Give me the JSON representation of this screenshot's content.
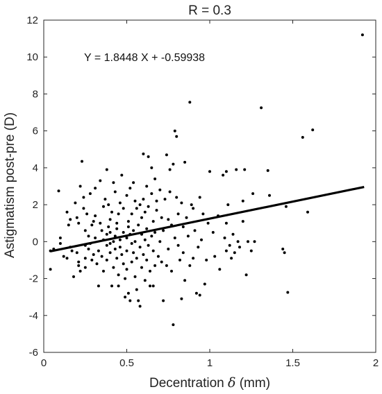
{
  "chart_data": {
    "type": "scatter",
    "title": "R = 0.3",
    "xlabel_prefix": "Decentration ",
    "xlabel_symbol": "δ",
    "xlabel_suffix": " (mm)",
    "ylabel": "Astigmatism post-pre (D)",
    "annotation": "Y = 1.8448 X + -0.59938",
    "xlim": [
      0,
      2
    ],
    "ylim": [
      -6,
      12
    ],
    "xticks": [
      "0",
      "0.5",
      "1",
      "1.5",
      "2"
    ],
    "yticks": [
      "-6",
      "-4",
      "-2",
      "0",
      "2",
      "4",
      "6",
      "8",
      "10",
      "12"
    ],
    "grid": false,
    "fit_line": {
      "slope": 1.8448,
      "intercept": -0.59938,
      "x_range": [
        0.04,
        1.93
      ]
    },
    "colors": {
      "points": "#000000",
      "line": "#000000",
      "axes": "#262626"
    },
    "points": [
      [
        0.04,
        -0.5
      ],
      [
        0.04,
        -1.5
      ],
      [
        0.06,
        -0.4
      ],
      [
        0.09,
        2.75
      ],
      [
        0.1,
        0.2
      ],
      [
        0.1,
        -0.1
      ],
      [
        0.12,
        -0.8
      ],
      [
        0.14,
        1.6
      ],
      [
        0.14,
        -0.9
      ],
      [
        0.15,
        0.9
      ],
      [
        0.16,
        1.2
      ],
      [
        0.16,
        -0.3
      ],
      [
        0.17,
        -0.5
      ],
      [
        0.18,
        -1.9
      ],
      [
        0.19,
        2.1
      ],
      [
        0.2,
        1.3
      ],
      [
        0.2,
        -0.6
      ],
      [
        0.21,
        1.0
      ],
      [
        0.21,
        -1.1
      ],
      [
        0.21,
        -1.3
      ],
      [
        0.22,
        -1.6
      ],
      [
        0.22,
        3.0
      ],
      [
        0.23,
        4.35
      ],
      [
        0.24,
        1.8
      ],
      [
        0.24,
        2.4
      ],
      [
        0.25,
        0.6
      ],
      [
        0.25,
        -0.2
      ],
      [
        0.25,
        -0.9
      ],
      [
        0.25,
        -1.4
      ],
      [
        0.26,
        1.5
      ],
      [
        0.27,
        0.3
      ],
      [
        0.27,
        -0.4
      ],
      [
        0.28,
        2.6
      ],
      [
        0.28,
        -0.1
      ],
      [
        0.29,
        0.9
      ],
      [
        0.29,
        -1.0
      ],
      [
        0.3,
        1.1
      ],
      [
        0.3,
        -0.7
      ],
      [
        0.31,
        2.9
      ],
      [
        0.31,
        1.4
      ],
      [
        0.31,
        0.2
      ],
      [
        0.32,
        -1.2
      ],
      [
        0.33,
        -0.5
      ],
      [
        0.33,
        -2.4
      ],
      [
        0.34,
        1.0
      ],
      [
        0.34,
        3.3
      ],
      [
        0.35,
        0.6
      ],
      [
        0.35,
        -0.8
      ],
      [
        0.36,
        0.1
      ],
      [
        0.36,
        1.9
      ],
      [
        0.36,
        -1.6
      ],
      [
        0.37,
        2.3
      ],
      [
        0.38,
        0.4
      ],
      [
        0.38,
        -0.2
      ],
      [
        0.38,
        -1.0
      ],
      [
        0.38,
        3.9
      ],
      [
        0.39,
        0.8
      ],
      [
        0.39,
        2.0
      ],
      [
        0.4,
        -0.1
      ],
      [
        0.4,
        1.2
      ],
      [
        0.4,
        -0.6
      ],
      [
        0.4,
        0.5
      ],
      [
        0.41,
        -2.4
      ],
      [
        0.41,
        1.6
      ],
      [
        0.42,
        0.0
      ],
      [
        0.42,
        -1.4
      ],
      [
        0.42,
        3.2
      ],
      [
        0.43,
        0.3
      ],
      [
        0.43,
        -0.4
      ],
      [
        0.43,
        2.7
      ],
      [
        0.44,
        1.0
      ],
      [
        0.44,
        -0.9
      ],
      [
        0.44,
        0.7
      ],
      [
        0.45,
        -1.8
      ],
      [
        0.45,
        -2.4
      ],
      [
        0.45,
        1.5
      ],
      [
        0.46,
        0.1
      ],
      [
        0.46,
        -0.3
      ],
      [
        0.46,
        2.1
      ],
      [
        0.47,
        3.6
      ],
      [
        0.47,
        -0.7
      ],
      [
        0.48,
        0.5
      ],
      [
        0.48,
        1.8
      ],
      [
        0.48,
        -1.2
      ],
      [
        0.49,
        -2.0
      ],
      [
        0.49,
        -3.0
      ],
      [
        0.5,
        0.2
      ],
      [
        0.5,
        2.5
      ],
      [
        0.5,
        -0.5
      ],
      [
        0.5,
        -1.5
      ],
      [
        0.51,
        0.8
      ],
      [
        0.51,
        1.1
      ],
      [
        0.51,
        -2.8
      ],
      [
        0.52,
        0.4
      ],
      [
        0.52,
        -3.2
      ],
      [
        0.52,
        2.9
      ],
      [
        0.53,
        -0.1
      ],
      [
        0.53,
        1.5
      ],
      [
        0.53,
        -1.1
      ],
      [
        0.54,
        0.6
      ],
      [
        0.54,
        3.2
      ],
      [
        0.54,
        -0.6
      ],
      [
        0.55,
        -1.9
      ],
      [
        0.55,
        2.2
      ],
      [
        0.55,
        0.0
      ],
      [
        0.56,
        1.8
      ],
      [
        0.56,
        -0.9
      ],
      [
        0.56,
        -2.6
      ],
      [
        0.57,
        -3.2
      ],
      [
        0.57,
        0.9
      ],
      [
        0.58,
        -3.5
      ],
      [
        0.58,
        2.0
      ],
      [
        0.58,
        -0.3
      ],
      [
        0.59,
        1.3
      ],
      [
        0.59,
        -1.4
      ],
      [
        0.59,
        0.4
      ],
      [
        0.6,
        2.3
      ],
      [
        0.6,
        4.75
      ],
      [
        0.6,
        -0.7
      ],
      [
        0.61,
        0.1
      ],
      [
        0.61,
        1.6
      ],
      [
        0.61,
        -2.1
      ],
      [
        0.62,
        3.0
      ],
      [
        0.62,
        -1.0
      ],
      [
        0.62,
        0.7
      ],
      [
        0.63,
        4.6
      ],
      [
        0.63,
        -0.2
      ],
      [
        0.63,
        1.9
      ],
      [
        0.64,
        -2.4
      ],
      [
        0.64,
        -1.6
      ],
      [
        0.65,
        0.3
      ],
      [
        0.65,
        2.6
      ],
      [
        0.65,
        4.0
      ],
      [
        0.66,
        -0.5
      ],
      [
        0.66,
        -2.4
      ],
      [
        0.66,
        1.1
      ],
      [
        0.67,
        3.4
      ],
      [
        0.67,
        0.5
      ],
      [
        0.67,
        -1.3
      ],
      [
        0.68,
        1.7
      ],
      [
        0.68,
        2.2
      ],
      [
        0.69,
        -0.8
      ],
      [
        0.7,
        0.0
      ],
      [
        0.7,
        2.8
      ],
      [
        0.71,
        -1.1
      ],
      [
        0.71,
        1.3
      ],
      [
        0.72,
        -3.2
      ],
      [
        0.72,
        0.6
      ],
      [
        0.73,
        2.3
      ],
      [
        0.74,
        4.7
      ],
      [
        0.74,
        -1.3
      ],
      [
        0.75,
        1.2
      ],
      [
        0.75,
        -0.4
      ],
      [
        0.76,
        3.9
      ],
      [
        0.76,
        2.7
      ],
      [
        0.77,
        0.9
      ],
      [
        0.77,
        -1.6
      ],
      [
        0.78,
        -4.5
      ],
      [
        0.78,
        4.2
      ],
      [
        0.79,
        6.0
      ],
      [
        0.79,
        0.2
      ],
      [
        0.8,
        5.7
      ],
      [
        0.8,
        2.4
      ],
      [
        0.81,
        -0.2
      ],
      [
        0.81,
        1.5
      ],
      [
        0.82,
        -1.0
      ],
      [
        0.83,
        -3.1
      ],
      [
        0.83,
        2.1
      ],
      [
        0.84,
        0.8
      ],
      [
        0.84,
        -0.6
      ],
      [
        0.85,
        -2.1
      ],
      [
        0.85,
        4.3
      ],
      [
        0.86,
        1.3
      ],
      [
        0.87,
        0.3
      ],
      [
        0.88,
        7.55
      ],
      [
        0.88,
        -1.3
      ],
      [
        0.89,
        2.0
      ],
      [
        0.9,
        -0.9
      ],
      [
        0.9,
        1.8
      ],
      [
        0.91,
        0.6
      ],
      [
        0.92,
        -2.8
      ],
      [
        0.93,
        -0.3
      ],
      [
        0.94,
        2.4
      ],
      [
        0.94,
        -2.9
      ],
      [
        0.95,
        0.1
      ],
      [
        0.96,
        1.5
      ],
      [
        0.97,
        -2.3
      ],
      [
        0.98,
        -1.0
      ],
      [
        0.99,
        1.0
      ],
      [
        1.0,
        3.8
      ],
      [
        1.02,
        0.5
      ],
      [
        1.03,
        -0.8
      ],
      [
        1.05,
        1.4
      ],
      [
        1.06,
        -1.5
      ],
      [
        1.08,
        3.6
      ],
      [
        1.09,
        0.2
      ],
      [
        1.1,
        3.8
      ],
      [
        1.1,
        -0.5
      ],
      [
        1.1,
        1.0
      ],
      [
        1.11,
        2.0
      ],
      [
        1.12,
        -0.2
      ],
      [
        1.13,
        -0.9
      ],
      [
        1.14,
        0.4
      ],
      [
        1.15,
        -0.6
      ],
      [
        1.16,
        3.9
      ],
      [
        1.17,
        0.0
      ],
      [
        1.18,
        -0.3
      ],
      [
        1.2,
        2.2
      ],
      [
        1.2,
        1.1
      ],
      [
        1.21,
        3.9
      ],
      [
        1.22,
        -1.8
      ],
      [
        1.23,
        0.0
      ],
      [
        1.25,
        -0.5
      ],
      [
        1.26,
        2.6
      ],
      [
        1.27,
        0.0
      ],
      [
        1.31,
        7.25
      ],
      [
        1.35,
        3.85
      ],
      [
        1.36,
        2.5
      ],
      [
        1.44,
        -0.4
      ],
      [
        1.45,
        -0.6
      ],
      [
        1.46,
        1.9
      ],
      [
        1.47,
        -2.75
      ],
      [
        1.56,
        5.65
      ],
      [
        1.59,
        1.6
      ],
      [
        1.62,
        6.05
      ],
      [
        1.92,
        11.2
      ]
    ]
  }
}
